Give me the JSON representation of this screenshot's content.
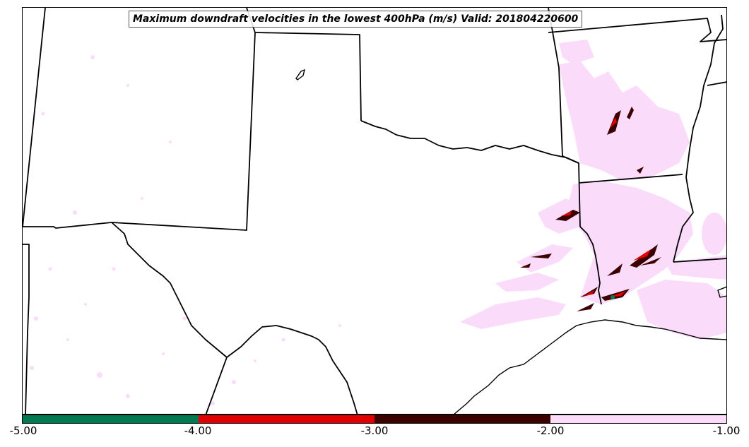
{
  "title": "Maximum downdraft velocities in the lowest 400hPa (m/s) Valid: 201804220600",
  "colorbar": {
    "segments": [
      {
        "from": -5.0,
        "to": -4.0,
        "color": "#007a50"
      },
      {
        "from": -4.0,
        "to": -3.0,
        "color": "#e00000"
      },
      {
        "from": -3.0,
        "to": -2.0,
        "color": "#3c0000"
      },
      {
        "from": -2.0,
        "to": -1.0,
        "color": "#fadcfa"
      }
    ],
    "tick_labels": [
      "-5.00",
      "-4.00",
      "-3.00",
      "-2.00",
      "-1.00"
    ]
  },
  "colors": {
    "light": "#fadcfa",
    "moderate": "#3c0000",
    "strong": "#e00000",
    "extreme": "#007a50",
    "boundary": "#000000"
  }
}
